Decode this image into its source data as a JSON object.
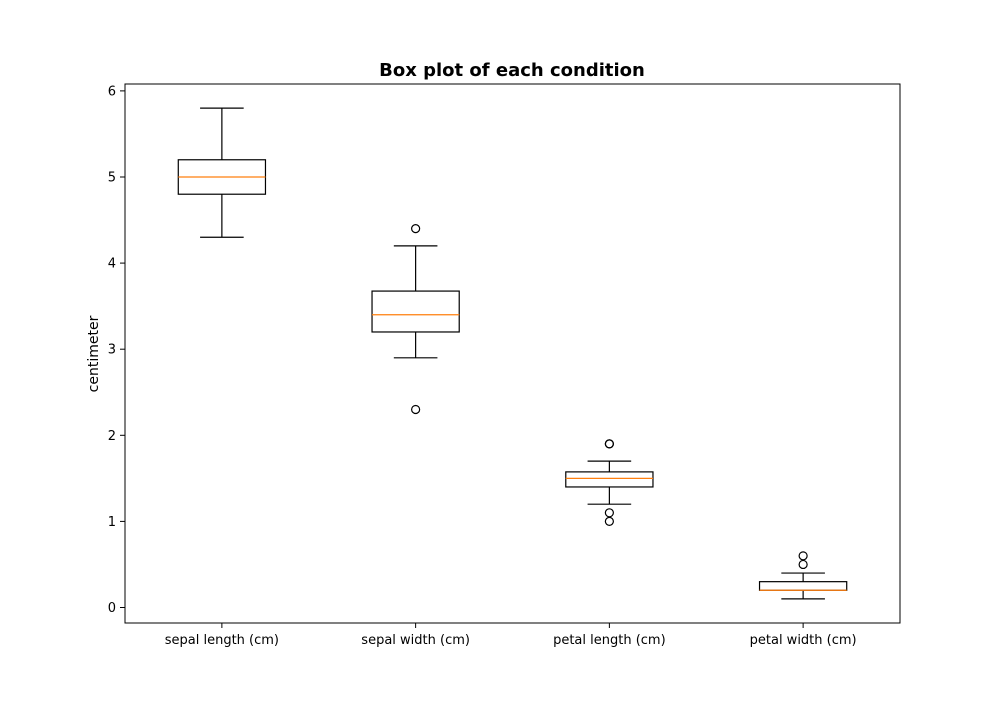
{
  "chart_data": {
    "type": "box",
    "title": "Box plot of each condition",
    "xlabel": "",
    "ylabel": "centimeter",
    "ylim": [
      -0.18,
      6.08
    ],
    "yticks": [
      0,
      1,
      2,
      3,
      4,
      5,
      6
    ],
    "grid": false,
    "legend": "none",
    "colors": {
      "box": "#000000",
      "median": "#ff7f0e",
      "background": "#ffffff"
    },
    "categories": [
      "sepal length (cm)",
      "sepal width (cm)",
      "petal length (cm)",
      "petal width (cm)"
    ],
    "boxes": [
      {
        "label": "sepal length (cm)",
        "whisker_low": 4.3,
        "q1": 4.8,
        "median": 5.0,
        "q3": 5.2,
        "whisker_high": 5.8,
        "outliers": []
      },
      {
        "label": "sepal width (cm)",
        "whisker_low": 2.9,
        "q1": 3.2,
        "median": 3.4,
        "q3": 3.675,
        "whisker_high": 4.2,
        "outliers": [
          4.4,
          2.3
        ]
      },
      {
        "label": "petal length (cm)",
        "whisker_low": 1.2,
        "q1": 1.4,
        "median": 1.5,
        "q3": 1.575,
        "whisker_high": 1.7,
        "outliers": [
          1.9,
          1.9,
          1.1,
          1.0
        ]
      },
      {
        "label": "petal width (cm)",
        "whisker_low": 0.1,
        "q1": 0.2,
        "median": 0.2,
        "q3": 0.3,
        "whisker_high": 0.4,
        "outliers": [
          0.6,
          0.5
        ]
      }
    ]
  }
}
